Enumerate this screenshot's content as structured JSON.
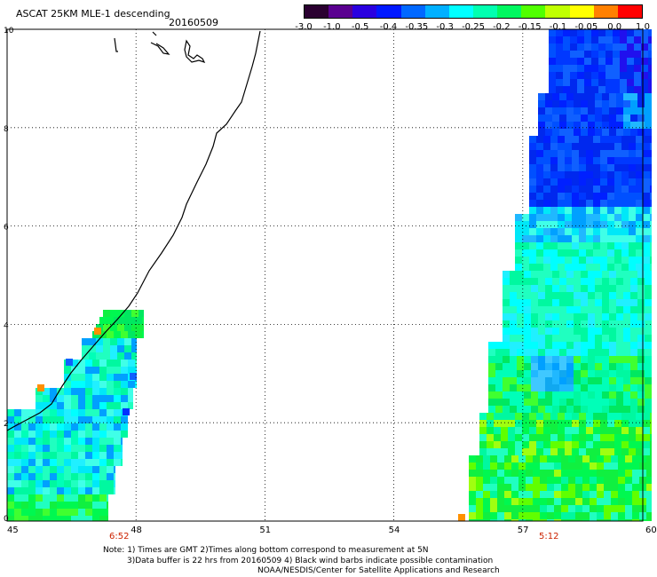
{
  "header": {
    "title": "ASCAT 25KM MLE-1 descending",
    "date": "20160509"
  },
  "colorbar": {
    "labels": [
      "-3.0",
      "-1.0",
      "-0.5",
      "-0.4",
      "-0.35",
      "-0.3",
      "-0.25",
      "-0.2",
      "-0.15",
      "-0.1",
      "-0.05",
      "0.0",
      "1.0"
    ],
    "colors": [
      "#2a0030",
      "#5a0090",
      "#2a00e0",
      "#0018ff",
      "#0068ff",
      "#00b0ff",
      "#00ffff",
      "#00ffb0",
      "#00f860",
      "#50ff00",
      "#c0ff00",
      "#ffff00",
      "#ff8000",
      "#ff0000"
    ]
  },
  "axes": {
    "x_ticks": [
      "45",
      "48",
      "51",
      "54",
      "57",
      "60"
    ],
    "y_ticks": [
      "0",
      "2",
      "4",
      "6",
      "8",
      "10"
    ]
  },
  "time_labels": [
    "6:52",
    "5:12"
  ],
  "notes": {
    "line1": "Note: 1) Times are GMT 2)Times along bottom correspond to measurement at 5N",
    "line2": "3)Data buffer is 22 hrs from 20160509 4) Black wind barbs indicate possible contamination",
    "line3": "NOAA/NESDIS/Center for Satellite Applications and Research"
  }
}
